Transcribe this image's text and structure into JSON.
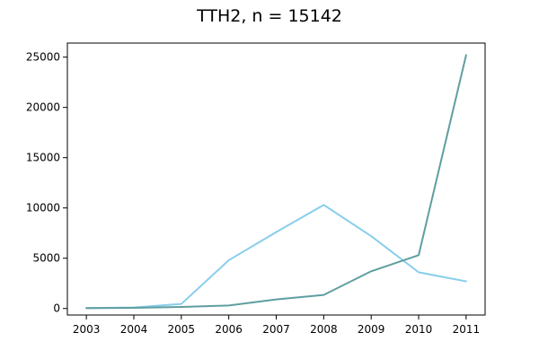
{
  "chart_data": {
    "type": "line",
    "title": "TTH2, n = 15142",
    "xlabel": "",
    "ylabel": "",
    "x": [
      "2003",
      "2004",
      "2005",
      "2006",
      "2007",
      "2008",
      "2009",
      "2010",
      "2011"
    ],
    "xlim": [
      2002.6,
      2011.4
    ],
    "ylim": [
      -650,
      26400
    ],
    "yticks": [
      0,
      5000,
      10000,
      15000,
      20000,
      25000
    ],
    "grid": false,
    "legend": "none",
    "series": [
      {
        "color": "#87CEEB",
        "values": [
          50,
          100,
          450,
          4800,
          7600,
          10300,
          7200,
          3600,
          2700
        ]
      },
      {
        "color": "#5F9EA0",
        "values": [
          30,
          60,
          150,
          300,
          900,
          1350,
          3700,
          5300,
          25200
        ]
      }
    ]
  }
}
